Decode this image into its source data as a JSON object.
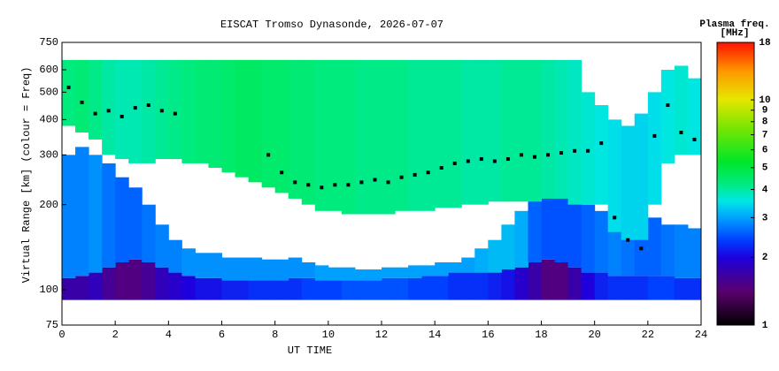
{
  "chart_data": {
    "type": "heatmap",
    "title": "EISCAT Tromso Dynasonde, 2026-07-07",
    "xlabel": "UT TIME",
    "ylabel": "Virtual Range [km] (colour = Freq)",
    "colorbar_title": [
      "Plasma freq.",
      "[MHz]"
    ],
    "xlim": [
      0,
      24
    ],
    "xticks": [
      0,
      2,
      4,
      6,
      8,
      10,
      12,
      14,
      16,
      18,
      20,
      22,
      24
    ],
    "ylim": [
      75,
      750
    ],
    "yticks": [
      75,
      100,
      200,
      300,
      400,
      500,
      600,
      750
    ],
    "ylog": true,
    "clim": [
      1,
      18
    ],
    "cticks": [
      1,
      2,
      3,
      4,
      5,
      6,
      7,
      8,
      9,
      10,
      18
    ],
    "clog": true,
    "cell_width": 0.5,
    "x": [
      0,
      0.5,
      1,
      1.5,
      2,
      2.5,
      3,
      3.5,
      4,
      4.5,
      5,
      5.5,
      6,
      6.5,
      7,
      7.5,
      8,
      8.5,
      9,
      9.5,
      10,
      10.5,
      11,
      11.5,
      12,
      12.5,
      13,
      13.5,
      14,
      14.5,
      15,
      15.5,
      16,
      16.5,
      17,
      17.5,
      18,
      18.5,
      19,
      19.5,
      20,
      20.5,
      21,
      21.5,
      22,
      22.5,
      23,
      23.5
    ],
    "layers": [
      {
        "y0": [
          92,
          92,
          92,
          92,
          92,
          92,
          92,
          92,
          92,
          92,
          92,
          92,
          92,
          92,
          92,
          92,
          92,
          92,
          92,
          92,
          92,
          92,
          92,
          92,
          92,
          92,
          92,
          92,
          92,
          92,
          92,
          92,
          92,
          92,
          92,
          92,
          92,
          92,
          92,
          92,
          92,
          92,
          92,
          92,
          92,
          92,
          92,
          92
        ],
        "y1": [
          110,
          112,
          115,
          120,
          125,
          128,
          125,
          120,
          115,
          112,
          110,
          110,
          108,
          108,
          108,
          108,
          108,
          110,
          110,
          108,
          108,
          108,
          108,
          108,
          110,
          110,
          110,
          112,
          112,
          115,
          115,
          115,
          115,
          118,
          120,
          125,
          128,
          125,
          120,
          115,
          115,
          112,
          112,
          112,
          112,
          112,
          110,
          110
        ],
        "values": [
          1.7,
          1.7,
          1.8,
          1.6,
          1.5,
          1.5,
          1.6,
          1.8,
          1.9,
          2.0,
          2.1,
          2.1,
          2.2,
          2.2,
          2.3,
          2.3,
          2.3,
          2.3,
          2.4,
          2.4,
          2.4,
          2.5,
          2.5,
          2.5,
          2.5,
          2.5,
          2.4,
          2.4,
          2.4,
          2.3,
          2.3,
          2.3,
          2.2,
          2.1,
          1.9,
          1.7,
          1.5,
          1.5,
          1.7,
          2.0,
          2.2,
          2.3,
          2.3,
          2.3,
          2.4,
          2.4,
          2.3,
          2.3
        ]
      },
      {
        "y0": [
          110,
          112,
          115,
          120,
          125,
          128,
          125,
          120,
          115,
          112,
          110,
          110,
          108,
          108,
          108,
          108,
          108,
          110,
          110,
          108,
          108,
          108,
          108,
          108,
          110,
          110,
          110,
          112,
          112,
          115,
          115,
          115,
          115,
          118,
          120,
          125,
          128,
          125,
          120,
          115,
          115,
          112,
          112,
          112,
          112,
          112,
          110,
          110
        ],
        "y1": [
          300,
          320,
          300,
          280,
          250,
          230,
          200,
          170,
          150,
          140,
          135,
          135,
          130,
          130,
          130,
          128,
          128,
          130,
          125,
          122,
          120,
          120,
          118,
          118,
          120,
          120,
          122,
          122,
          125,
          125,
          130,
          140,
          150,
          170,
          190,
          230,
          240,
          240,
          220,
          200,
          190,
          170,
          170,
          180,
          180,
          170,
          170,
          165
        ],
        "values": [
          2.8,
          2.8,
          2.9,
          2.7,
          2.6,
          2.6,
          2.7,
          2.8,
          2.8,
          2.9,
          2.9,
          2.9,
          2.9,
          2.9,
          2.9,
          2.9,
          2.9,
          2.9,
          2.9,
          3.0,
          3.0,
          3.0,
          3.0,
          3.0,
          3.0,
          3.0,
          3.0,
          3.0,
          3.0,
          3.0,
          3.0,
          3.1,
          3.2,
          3.2,
          3.1,
          2.6,
          2.5,
          2.5,
          2.5,
          2.6,
          2.7,
          2.8,
          2.7,
          2.6,
          2.6,
          2.7,
          2.8,
          2.8
        ]
      },
      {
        "y0": [
          380,
          360,
          340,
          300,
          290,
          280,
          280,
          290,
          290,
          280,
          280,
          270,
          260,
          250,
          240,
          230,
          220,
          210,
          200,
          190,
          190,
          185,
          185,
          185,
          185,
          190,
          190,
          190,
          195,
          195,
          200,
          200,
          205,
          205,
          205,
          205,
          210,
          210,
          200,
          200,
          200,
          160,
          150,
          150,
          200,
          280,
          300,
          300
        ],
        "y1": [
          650,
          650,
          650,
          650,
          650,
          650,
          650,
          650,
          650,
          650,
          650,
          650,
          650,
          650,
          650,
          650,
          650,
          650,
          650,
          650,
          650,
          650,
          650,
          650,
          650,
          650,
          650,
          650,
          650,
          650,
          650,
          650,
          650,
          650,
          650,
          650,
          650,
          650,
          650,
          500,
          450,
          400,
          380,
          420,
          500,
          600,
          620,
          560
        ],
        "values": [
          4.3,
          4.4,
          4.2,
          4.0,
          3.9,
          3.9,
          4.0,
          4.1,
          4.2,
          4.3,
          4.4,
          4.4,
          4.5,
          4.6,
          4.6,
          4.5,
          4.5,
          4.4,
          4.4,
          4.3,
          4.3,
          4.3,
          4.2,
          4.2,
          4.2,
          4.2,
          4.1,
          4.1,
          4.1,
          4.1,
          4.0,
          4.0,
          4.0,
          4.1,
          4.1,
          4.1,
          4.0,
          3.9,
          3.8,
          3.7,
          3.6,
          3.5,
          3.4,
          3.4,
          3.5,
          3.6,
          3.7,
          3.6
        ]
      }
    ],
    "trace": {
      "values": [
        520,
        460,
        420,
        430,
        410,
        440,
        450,
        430,
        420,
        null,
        null,
        null,
        null,
        null,
        null,
        300,
        260,
        240,
        235,
        230,
        235,
        235,
        240,
        245,
        240,
        250,
        255,
        260,
        270,
        280,
        285,
        290,
        285,
        290,
        300,
        295,
        300,
        305,
        310,
        310,
        330,
        180,
        150,
        140,
        350,
        450,
        360,
        340
      ]
    }
  }
}
